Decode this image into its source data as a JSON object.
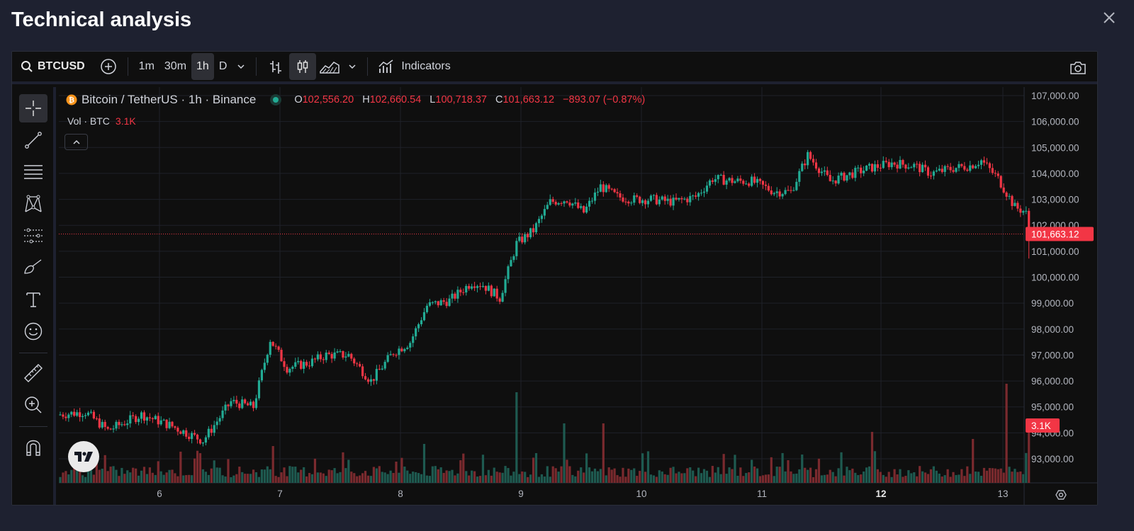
{
  "page": {
    "title": "Technical analysis"
  },
  "toolbar": {
    "symbol": "BTCUSD",
    "intervals": [
      "1m",
      "30m",
      "1h",
      "D"
    ],
    "active_interval": "1h",
    "indicators_label": "Indicators"
  },
  "legend": {
    "symbol": "Bitcoin / TetherUS · 1h · Binance",
    "o_label": "O",
    "o": "102,556.20",
    "h_label": "H",
    "h": "102,660.54",
    "l_label": "L",
    "l": "100,718.37",
    "c_label": "C",
    "c": "101,663.12",
    "change": "−893.07 (−0.87%)",
    "vol_label": "Vol · BTC",
    "vol": "3.1K"
  },
  "price_axis": {
    "ticks": [
      "107,000.00",
      "106,000.00",
      "105,000.00",
      "104,000.00",
      "103,000.00",
      "102,000.00",
      "101,000.00",
      "100,000.00",
      "99,000.00",
      "98,000.00",
      "97,000.00",
      "96,000.00",
      "95,000.00",
      "94,000.00",
      "93,000.00"
    ],
    "last_price": "101,663.12",
    "last_volume": "3.1K"
  },
  "time_axis": {
    "ticks": [
      "6",
      "7",
      "8",
      "9",
      "10",
      "11",
      "12",
      "13"
    ],
    "bold": "12"
  },
  "colors": {
    "up": "#22ab94",
    "down": "#f23645",
    "background": "#0f0f0f",
    "grid": "#1f2129"
  },
  "icons": [
    "search-icon",
    "add-icon",
    "chart-type-bars-icon",
    "candles-icon",
    "area-chart-icon",
    "indicators-icon",
    "camera-icon",
    "crosshair-icon",
    "trend-line-icon",
    "fib-icon",
    "pattern-icon",
    "prediction-icon",
    "brush-icon",
    "text-icon",
    "emoji-icon",
    "ruler-icon",
    "zoom-icon",
    "magnet-icon",
    "settings-icon",
    "close-icon"
  ],
  "chart_data": {
    "type": "candlestick",
    "interval": "1h",
    "price_range": [
      92300,
      107500
    ],
    "waypoints_note_values": [
      [
        0,
        94700
      ],
      [
        10,
        94800
      ],
      [
        18,
        94100
      ],
      [
        30,
        94700
      ],
      [
        40,
        94300
      ],
      [
        52,
        93700
      ],
      [
        62,
        95200
      ],
      [
        70,
        95000
      ],
      [
        76,
        97600
      ],
      [
        82,
        96500
      ],
      [
        90,
        96700
      ],
      [
        96,
        97000
      ],
      [
        104,
        97000
      ],
      [
        112,
        96000
      ],
      [
        120,
        97100
      ],
      [
        126,
        97500
      ],
      [
        132,
        98900
      ],
      [
        140,
        99100
      ],
      [
        148,
        99800
      ],
      [
        152,
        99700
      ],
      [
        158,
        99200
      ],
      [
        164,
        101300
      ],
      [
        170,
        101800
      ],
      [
        176,
        102900
      ],
      [
        182,
        103000
      ],
      [
        188,
        102500
      ],
      [
        194,
        103500
      ],
      [
        200,
        103100
      ],
      [
        206,
        103000
      ],
      [
        212,
        103000
      ],
      [
        220,
        102900
      ],
      [
        228,
        103100
      ],
      [
        234,
        103800
      ],
      [
        242,
        103700
      ],
      [
        248,
        103700
      ],
      [
        256,
        103300
      ],
      [
        262,
        103300
      ],
      [
        268,
        104700
      ],
      [
        276,
        103700
      ],
      [
        284,
        104000
      ],
      [
        290,
        104200
      ],
      [
        298,
        104400
      ],
      [
        306,
        104300
      ],
      [
        312,
        104000
      ],
      [
        320,
        104200
      ],
      [
        326,
        104300
      ],
      [
        330,
        104500
      ],
      [
        336,
        103800
      ],
      [
        342,
        102700
      ],
      [
        345,
        102556
      ],
      [
        346,
        101663
      ]
    ],
    "last_close": 101663.12
  }
}
